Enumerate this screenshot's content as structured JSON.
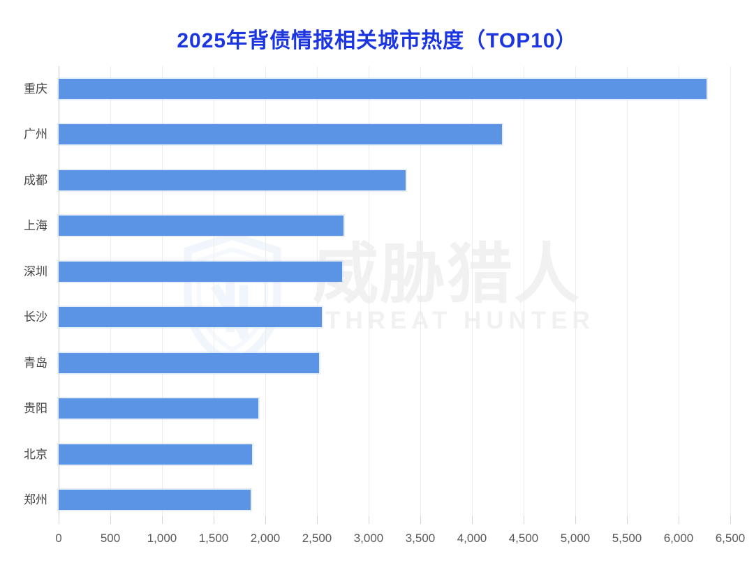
{
  "title": "2025年背债情报相关城市热度（TOP10）",
  "watermark": {
    "cn": "威胁猎人",
    "en": "THREAT HUNTER",
    "logo_icon": "threat-hunter-shield-icon"
  },
  "colors": {
    "title": "#1b36e0",
    "bar": "#5b94e4",
    "grid": "#ececec",
    "axis_line": "#c9c9c9",
    "tick_mark": "#d4d4d4",
    "category_label": "#434343",
    "tick_label": "#595959",
    "watermark_text": "#f1f1f1",
    "watermark_logo": "#e6eefb"
  },
  "chart_data": {
    "type": "bar",
    "orientation": "horizontal",
    "title": "2025年背债情报相关城市热度（TOP10）",
    "categories": [
      "重庆",
      "广州",
      "成都",
      "上海",
      "深圳",
      "长沙",
      "青岛",
      "贵阳",
      "北京",
      "郑州"
    ],
    "values": [
      6270,
      4290,
      3360,
      2760,
      2740,
      2550,
      2520,
      1930,
      1870,
      1860
    ],
    "xlabel": "",
    "ylabel": "",
    "xlim": [
      0,
      6500
    ],
    "xticks": [
      0,
      500,
      1000,
      1500,
      2000,
      2500,
      3000,
      3500,
      4000,
      4500,
      5000,
      5500,
      6000,
      6500
    ],
    "xtick_labels": [
      "0",
      "500",
      "1,000",
      "1,500",
      "2,000",
      "2,500",
      "3,000",
      "3,500",
      "4,000",
      "4,500",
      "5,000",
      "5,500",
      "6,000",
      "6,500"
    ],
    "grid": "vertical-gridlines-on",
    "legend": "none"
  }
}
